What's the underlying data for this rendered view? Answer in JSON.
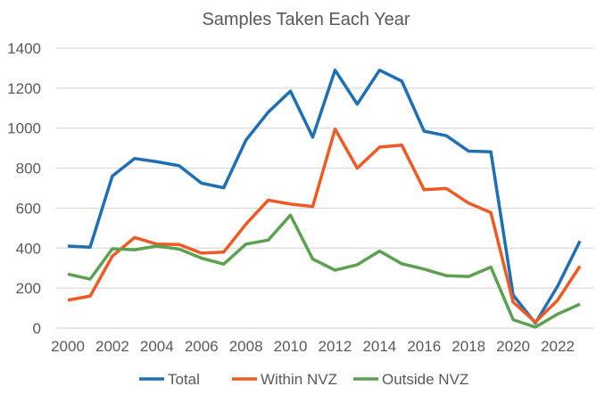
{
  "chart_data": {
    "type": "line",
    "title": "Samples Taken Each Year",
    "xlabel": "",
    "ylabel": "",
    "ylim": [
      0,
      1400
    ],
    "yticks": [
      0,
      200,
      400,
      600,
      800,
      1000,
      1200,
      1400
    ],
    "xtick_labels": [
      "2000",
      "2002",
      "2004",
      "2006",
      "2008",
      "2010",
      "2012",
      "2014",
      "2016",
      "2018",
      "2020",
      "2022"
    ],
    "grid": true,
    "legend_position": "bottom",
    "x": [
      2000,
      2001,
      2002,
      2003,
      2004,
      2005,
      2006,
      2007,
      2008,
      2009,
      2010,
      2011,
      2012,
      2013,
      2014,
      2015,
      2016,
      2017,
      2018,
      2019,
      2020,
      2021,
      2022,
      2023
    ],
    "series": [
      {
        "name": "Total",
        "color": "#1F6FB4",
        "values": [
          410,
          405,
          760,
          848,
          832,
          812,
          725,
          702,
          940,
          1080,
          1185,
          955,
          1290,
          1120,
          1290,
          1235,
          985,
          962,
          885,
          882,
          165,
          25,
          210,
          435
        ]
      },
      {
        "name": "Within NVZ",
        "color": "#EE5A24",
        "values": [
          140,
          160,
          360,
          453,
          420,
          418,
          375,
          380,
          520,
          640,
          620,
          608,
          995,
          800,
          905,
          915,
          692,
          698,
          625,
          578,
          130,
          30,
          140,
          310
        ]
      },
      {
        "name": "Outside NVZ",
        "color": "#5BA150",
        "values": [
          270,
          245,
          397,
          392,
          410,
          395,
          350,
          320,
          420,
          440,
          565,
          345,
          290,
          317,
          385,
          322,
          295,
          262,
          258,
          305,
          42,
          5,
          70,
          120
        ]
      }
    ]
  }
}
